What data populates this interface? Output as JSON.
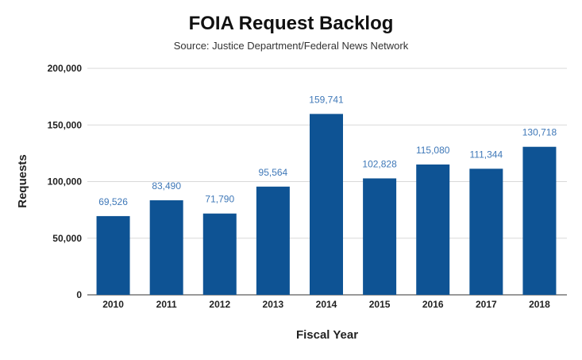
{
  "chart_data": {
    "type": "bar",
    "title": "FOIA Request Backlog",
    "subtitle": "Source: Justice Department/Federal News Network",
    "xlabel": "Fiscal Year",
    "ylabel": "Requests",
    "categories": [
      "2010",
      "2011",
      "2012",
      "2013",
      "2014",
      "2015",
      "2016",
      "2017",
      "2018"
    ],
    "values": [
      69526,
      83490,
      71790,
      95564,
      159741,
      102828,
      115080,
      111344,
      130718
    ],
    "data_labels": [
      "69,526",
      "83,490",
      "71,790",
      "95,564",
      "159,741",
      "102,828",
      "115,080",
      "111,344",
      "130,718"
    ],
    "yticks": [
      0,
      50000,
      100000,
      150000,
      200000
    ],
    "ytick_labels": [
      "0",
      "50,000",
      "100,000",
      "150,000",
      "200,000"
    ],
    "ylim": [
      0,
      200000
    ],
    "grid": true,
    "legend": "none",
    "colors": {
      "bar": "#0e5394",
      "data_label": "#3f78b8",
      "grid": "#d9d9d9"
    }
  }
}
